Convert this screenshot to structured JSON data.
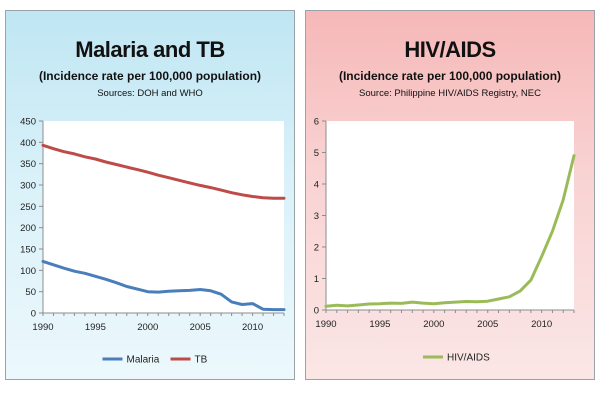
{
  "chart_data": [
    {
      "type": "line",
      "title": "Malaria and TB",
      "subtitle": "(Incidence rate per 100,000 population)",
      "source": "Sources: DOH and WHO",
      "xlabel": "",
      "ylabel": "",
      "xlim": [
        1990,
        2013
      ],
      "ylim": [
        0,
        450
      ],
      "xticks": [
        1990,
        1995,
        2000,
        2005,
        2010
      ],
      "yticks": [
        0,
        50,
        100,
        150,
        200,
        250,
        300,
        350,
        400,
        450
      ],
      "grid": false,
      "legend_position": "bottom",
      "series": [
        {
          "name": "Malaria",
          "color": "#4a7ebb",
          "x": [
            1990,
            1991,
            1992,
            1993,
            1994,
            1995,
            1996,
            1997,
            1998,
            1999,
            2000,
            2001,
            2002,
            2003,
            2004,
            2005,
            2006,
            2007,
            2008,
            2009,
            2010,
            2011,
            2012,
            2013
          ],
          "values": [
            121,
            113,
            105,
            98,
            93,
            86,
            79,
            71,
            62,
            56,
            50,
            49,
            51,
            52,
            53,
            55,
            52,
            44,
            26,
            20,
            22,
            9,
            8,
            8
          ]
        },
        {
          "name": "TB",
          "color": "#be4b48",
          "x": [
            1990,
            1991,
            1992,
            1993,
            1994,
            1995,
            1996,
            1997,
            1998,
            1999,
            2000,
            2001,
            2002,
            2003,
            2004,
            2005,
            2006,
            2007,
            2008,
            2009,
            2010,
            2011,
            2012,
            2013
          ],
          "values": [
            393,
            385,
            378,
            373,
            366,
            361,
            354,
            348,
            342,
            336,
            330,
            323,
            317,
            311,
            305,
            299,
            294,
            288,
            282,
            277,
            273,
            270,
            269,
            269
          ]
        }
      ]
    },
    {
      "type": "line",
      "title": "HIV/AIDS",
      "subtitle": "(Incidence rate per 100,000 population)",
      "source": "Source:  Philippine HIV/AIDS Registry, NEC",
      "xlabel": "",
      "ylabel": "",
      "xlim": [
        1990,
        2013
      ],
      "ylim": [
        0,
        6
      ],
      "xticks": [
        1990,
        1995,
        2000,
        2005,
        2010
      ],
      "yticks": [
        0,
        1,
        2,
        3,
        4,
        5,
        6
      ],
      "grid": false,
      "legend_position": "bottom",
      "series": [
        {
          "name": "HIV/AIDS",
          "color": "#9bbb59",
          "x": [
            1990,
            1991,
            1992,
            1993,
            1994,
            1995,
            1996,
            1997,
            1998,
            1999,
            2000,
            2001,
            2002,
            2003,
            2004,
            2005,
            2006,
            2007,
            2008,
            2009,
            2010,
            2011,
            2012,
            2013
          ],
          "values": [
            0.12,
            0.15,
            0.13,
            0.16,
            0.19,
            0.2,
            0.22,
            0.21,
            0.25,
            0.22,
            0.2,
            0.23,
            0.25,
            0.27,
            0.26,
            0.28,
            0.35,
            0.42,
            0.6,
            0.95,
            1.7,
            2.5,
            3.5,
            4.9
          ]
        }
      ]
    }
  ]
}
